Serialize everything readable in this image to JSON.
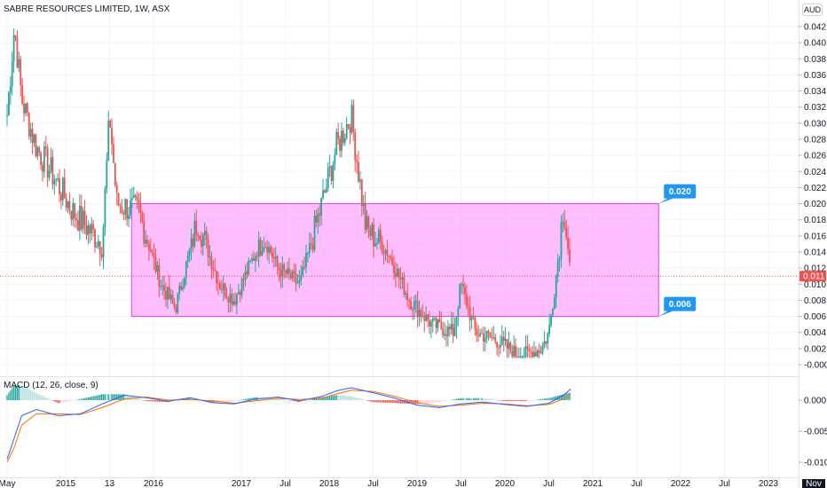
{
  "header": {
    "title": "SABRE RESOURCES LIMITED, 1W, ASX",
    "currency": "AUD"
  },
  "macd": {
    "label": "MACD (12, 26, close, 9)"
  },
  "price_axis": {
    "ticks": [
      "0.042",
      "0.040",
      "0.038",
      "0.036",
      "0.034",
      "0.032",
      "0.030",
      "0.028",
      "0.026",
      "0.024",
      "0.022",
      "0.020",
      "0.018",
      "0.016",
      "0.014",
      "0.012",
      "0.010",
      "0.008",
      "0.006",
      "0.004",
      "0.002",
      "-0.000"
    ],
    "current_price": "0.011"
  },
  "macd_axis": {
    "ticks": [
      "0.000",
      "-0.005",
      "-0.010"
    ]
  },
  "time_axis": {
    "ticks": [
      "May",
      "2015",
      "13",
      "2016",
      "2017",
      "Jul",
      "2018",
      "Jul",
      "2019",
      "Jul",
      "2020",
      "Jul",
      "2021",
      "Jul",
      "2022",
      "Jul",
      "2023"
    ],
    "current_date": "Nov"
  },
  "colors": {
    "up": "#26a69a",
    "down": "#ef5350",
    "zone_fill": "#ff80ff",
    "zone_border": "#e040fb",
    "callout": "#2196f3",
    "macd_line": "#2962ff",
    "signal_line": "#ff6d00",
    "current_price": "#ef5350",
    "grid": "#f0f3fa"
  },
  "chart_data": [
    {
      "type": "candlestick",
      "title": "SABRE RESOURCES LIMITED, 1W, ASX",
      "interval": "1W",
      "yaxis_unit": "AUD",
      "ylim": [
        -0.001,
        0.043
      ],
      "xrange": [
        "2014-05",
        "2023-04"
      ],
      "last_price": 0.011,
      "key_points": [
        {
          "date": "2014-05",
          "price": 0.031
        },
        {
          "date": "2014-06",
          "price": 0.042
        },
        {
          "date": "2014-07",
          "price": 0.033
        },
        {
          "date": "2014-09",
          "price": 0.027
        },
        {
          "date": "2014-11",
          "price": 0.024
        },
        {
          "date": "2015-02",
          "price": 0.019
        },
        {
          "date": "2015-06",
          "price": 0.015
        },
        {
          "date": "2015-07",
          "price": 0.031
        },
        {
          "date": "2015-08",
          "price": 0.02
        },
        {
          "date": "2015-11",
          "price": 0.019
        },
        {
          "date": "2016-02",
          "price": 0.01
        },
        {
          "date": "2016-04",
          "price": 0.007
        },
        {
          "date": "2016-07",
          "price": 0.018
        },
        {
          "date": "2016-10",
          "price": 0.01
        },
        {
          "date": "2016-12",
          "price": 0.008
        },
        {
          "date": "2017-04",
          "price": 0.016
        },
        {
          "date": "2017-06",
          "price": 0.012
        },
        {
          "date": "2017-09",
          "price": 0.01
        },
        {
          "date": "2017-12",
          "price": 0.02
        },
        {
          "date": "2018-02",
          "price": 0.027
        },
        {
          "date": "2018-04",
          "price": 0.031
        },
        {
          "date": "2018-06",
          "price": 0.017
        },
        {
          "date": "2018-09",
          "price": 0.014
        },
        {
          "date": "2018-12",
          "price": 0.008
        },
        {
          "date": "2019-03",
          "price": 0.005
        },
        {
          "date": "2019-06",
          "price": 0.004
        },
        {
          "date": "2019-07",
          "price": 0.01
        },
        {
          "date": "2019-09",
          "price": 0.004
        },
        {
          "date": "2019-12",
          "price": 0.003
        },
        {
          "date": "2020-03",
          "price": 0.001
        },
        {
          "date": "2020-06",
          "price": 0.002
        },
        {
          "date": "2020-07",
          "price": 0.004
        },
        {
          "date": "2020-08",
          "price": 0.011
        },
        {
          "date": "2020-09",
          "price": 0.02
        },
        {
          "date": "2020-10",
          "price": 0.011
        }
      ],
      "zone": {
        "top": 0.02,
        "bottom": 0.006,
        "start": "2015-10",
        "end": "2021-10"
      },
      "annotations": [
        "0.020",
        "0.006"
      ]
    },
    {
      "type": "line",
      "title": "MACD (12, 26, close, 9)",
      "ylim": [
        -0.011,
        0.002
      ],
      "series": [
        {
          "name": "MACD",
          "x": [
            "2014-05",
            "2014-06",
            "2014-07",
            "2014-09",
            "2014-12",
            "2015-03",
            "2015-06",
            "2015-09",
            "2015-12",
            "2016-03",
            "2016-06",
            "2016-09",
            "2016-12",
            "2017-03",
            "2017-06",
            "2017-09",
            "2017-12",
            "2018-02",
            "2018-04",
            "2018-07",
            "2018-10",
            "2019-01",
            "2019-04",
            "2019-07",
            "2019-10",
            "2020-01",
            "2020-04",
            "2020-07",
            "2020-09",
            "2020-10"
          ],
          "values": [
            -0.0095,
            -0.006,
            -0.0025,
            -0.0015,
            -0.0025,
            -0.0022,
            -0.0006,
            0.0008,
            0.0004,
            -0.0002,
            0.0004,
            -0.0004,
            -0.0006,
            0.0002,
            0.0005,
            -0.0001,
            0.0006,
            0.0015,
            0.002,
            0.0012,
            0.0003,
            -0.0008,
            -0.0012,
            -0.0006,
            -0.0003,
            -0.0007,
            -0.001,
            -0.0005,
            0.0008,
            0.0018
          ]
        },
        {
          "name": "Signal",
          "x": [
            "2014-05",
            "2014-06",
            "2014-07",
            "2014-09",
            "2014-12",
            "2015-03",
            "2015-06",
            "2015-09",
            "2015-12",
            "2016-03",
            "2016-06",
            "2016-09",
            "2016-12",
            "2017-03",
            "2017-06",
            "2017-09",
            "2017-12",
            "2018-02",
            "2018-04",
            "2018-07",
            "2018-10",
            "2019-01",
            "2019-04",
            "2019-07",
            "2019-10",
            "2020-01",
            "2020-04",
            "2020-07",
            "2020-09",
            "2020-10"
          ],
          "values": [
            -0.01,
            -0.0075,
            -0.004,
            -0.0022,
            -0.0022,
            -0.0023,
            -0.0012,
            0.0002,
            0.0005,
            0.0,
            0.0001,
            -0.0001,
            -0.0005,
            -0.0001,
            0.0003,
            0.0001,
            0.0003,
            0.001,
            0.0016,
            0.0014,
            0.0006,
            -0.0004,
            -0.001,
            -0.0008,
            -0.0005,
            -0.0006,
            -0.0009,
            -0.0007,
            0.0002,
            0.001
          ]
        }
      ],
      "yticks": [
        "0.000",
        "-0.005",
        "-0.010"
      ]
    }
  ]
}
